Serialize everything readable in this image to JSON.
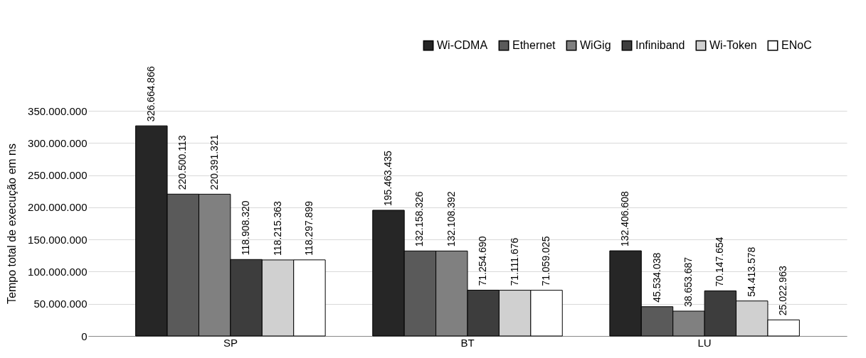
{
  "chart_data": {
    "type": "bar",
    "ylabel": "Tempo total de execução em ns",
    "categories": [
      "SP",
      "BT",
      "LU"
    ],
    "series": [
      {
        "name": "Wi-CDMA",
        "color": "#262626",
        "values": [
          326664866,
          195463435,
          132406608
        ],
        "value_labels": [
          "326.664.866",
          "195.463.435",
          "132.406.608"
        ]
      },
      {
        "name": "Ethernet",
        "color": "#5a5a5a",
        "values": [
          220500113,
          132158326,
          45534038
        ],
        "value_labels": [
          "220.500.113",
          "132.158.326",
          "45.534.038"
        ]
      },
      {
        "name": "WiGig",
        "color": "#808080",
        "values": [
          220391321,
          132108392,
          38653687
        ],
        "value_labels": [
          "220.391.321",
          "132.108.392",
          "38.653.687"
        ]
      },
      {
        "name": "Infiniband",
        "color": "#3d3d3d",
        "values": [
          118908320,
          71254690,
          70147654
        ],
        "value_labels": [
          "118.908.320",
          "71.254.690",
          "70.147.654"
        ]
      },
      {
        "name": "Wi-Token",
        "color": "#d0d0d0",
        "values": [
          118215363,
          71111676,
          54413578
        ],
        "value_labels": [
          "118.215.363",
          "71.111.676",
          "54.413.578"
        ]
      },
      {
        "name": "ENoC",
        "color": "#ffffff",
        "values": [
          118297899,
          71059025,
          25022963
        ],
        "value_labels": [
          "118.297.899",
          "71.059.025",
          "25.022.963"
        ]
      }
    ],
    "ylim": [
      0,
      350000000
    ],
    "yticks": [
      {
        "value": 0,
        "label": "0"
      },
      {
        "value": 50000000,
        "label": "50.000.000"
      },
      {
        "value": 100000000,
        "label": "100.000.000"
      },
      {
        "value": 150000000,
        "label": "150.000.000"
      },
      {
        "value": 200000000,
        "label": "200.000.000"
      },
      {
        "value": 250000000,
        "label": "250.000.000"
      },
      {
        "value": 300000000,
        "label": "300.000.000"
      },
      {
        "value": 350000000,
        "label": "350.000.000"
      }
    ],
    "grid": "y",
    "legend": "top right"
  }
}
